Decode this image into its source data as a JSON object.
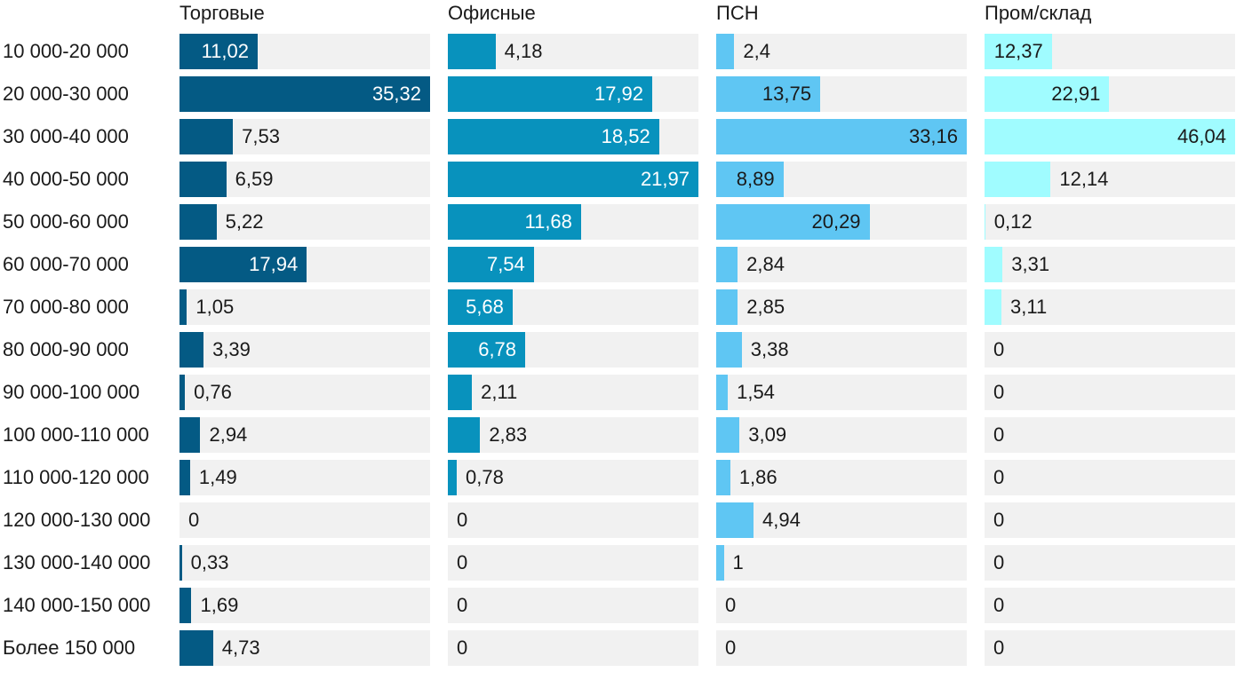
{
  "chart_data": {
    "type": "bar",
    "orientation": "horizontal",
    "layout": "small-multiples",
    "categories": [
      "10 000-20 000",
      "20 000-30 000",
      "30 000-40 000",
      "40 000-50 000",
      "50 000-60 000",
      "60 000-70 000",
      "70 000-80 000",
      "80 000-90 000",
      "90 000-100 000",
      "100 000-110 000",
      "110 000-120 000",
      "120 000-130 000",
      "130 000-140 000",
      "140 000-150 000",
      "Более 150 000"
    ],
    "series": [
      {
        "name": "Торговые",
        "color": "#045a84",
        "values": [
          11.02,
          35.32,
          7.53,
          6.59,
          5.22,
          17.94,
          1.05,
          3.39,
          0.76,
          2.94,
          1.49,
          0,
          0.33,
          1.69,
          4.73
        ],
        "labels": [
          "11,02",
          "35,32",
          "7,53",
          "6,59",
          "5,22",
          "17,94",
          "1,05",
          "3,39",
          "0,76",
          "2,94",
          "1,49",
          "0",
          "0,33",
          "1,69",
          "4,73"
        ]
      },
      {
        "name": "Офисные",
        "color": "#0892bd",
        "values": [
          4.18,
          17.92,
          18.52,
          21.97,
          11.68,
          7.54,
          5.68,
          6.78,
          2.11,
          2.83,
          0.78,
          0,
          0,
          0,
          0
        ],
        "labels": [
          "4,18",
          "17,92",
          "18,52",
          "21,97",
          "11,68",
          "7,54",
          "5,68",
          "6,78",
          "2,11",
          "2,83",
          "0,78",
          "0",
          "0",
          "0",
          "0"
        ]
      },
      {
        "name": "ПСН",
        "color": "#5fc6f3",
        "values": [
          2.4,
          13.75,
          33.16,
          8.89,
          20.29,
          2.84,
          2.85,
          3.38,
          1.54,
          3.09,
          1.86,
          4.94,
          1,
          0,
          0
        ],
        "labels": [
          "2,4",
          "13,75",
          "33,16",
          "8,89",
          "20,29",
          "2,84",
          "2,85",
          "3,38",
          "1,54",
          "3,09",
          "1,86",
          "4,94",
          "1",
          "0",
          "0"
        ]
      },
      {
        "name": "Пром/склад",
        "color": "#a0fcff",
        "values": [
          12.37,
          22.91,
          46.04,
          12.14,
          0.12,
          3.31,
          3.11,
          0,
          0,
          0,
          0,
          0,
          0,
          0,
          0
        ],
        "labels": [
          "12,37",
          "22,91",
          "46,04",
          "12,14",
          "0,12",
          "3,31",
          "3,11",
          "0",
          "0",
          "0",
          "0",
          "0",
          "0",
          "0",
          "0"
        ]
      }
    ],
    "track_color": "#f1f1f1",
    "grid": false,
    "legend": "none"
  }
}
